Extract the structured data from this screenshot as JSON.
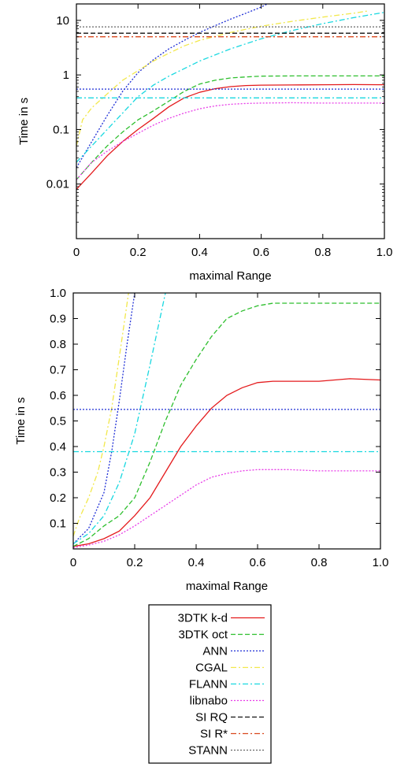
{
  "legend": {
    "entries": [
      {
        "label": "3DTK k-d",
        "color": "#e41a1c",
        "dash": "solid"
      },
      {
        "label": "3DTK oct",
        "color": "#2ebf2e",
        "dash": "dashed"
      },
      {
        "label": "ANN",
        "color": "#1f2fd6",
        "dash": "dotted"
      },
      {
        "label": "CGAL",
        "color": "#f2e84b",
        "dash": "dashdot"
      },
      {
        "label": "FLANN",
        "color": "#18d8e0",
        "dash": "dashdot"
      },
      {
        "label": "libnabo",
        "color": "#e83ce8",
        "dash": "dotted"
      },
      {
        "label": "SI RQ",
        "color": "#111111",
        "dash": "dashed"
      },
      {
        "label": "SI R*",
        "color": "#d9471e",
        "dash": "dashdot"
      },
      {
        "label": "STANN",
        "color": "#666666",
        "dash": "dotted"
      }
    ]
  },
  "chart_data": [
    {
      "type": "line",
      "xlabel": "maximal Range",
      "ylabel": "Time in s",
      "xlim": [
        0,
        1.0
      ],
      "ylim": [
        0.001,
        20
      ],
      "yscale": "log",
      "xticks": [
        0,
        0.2,
        0.4,
        0.6,
        0.8,
        1.0
      ],
      "xtick_labels": [
        "0",
        "0.2",
        "0.4",
        "0.6",
        "0.8",
        "1.0"
      ],
      "yticks": [
        0.01,
        0.1,
        1,
        10
      ],
      "ytick_labels": [
        "0.01",
        "0.1",
        "1",
        "10"
      ],
      "grid": false,
      "series": [
        {
          "name": "3DTK k-d",
          "x": [
            0,
            0.05,
            0.1,
            0.15,
            0.2,
            0.25,
            0.3,
            0.35,
            0.4,
            0.45,
            0.5,
            0.55,
            0.6,
            0.7,
            0.8,
            0.9,
            1.0
          ],
          "y": [
            0.008,
            0.016,
            0.033,
            0.06,
            0.1,
            0.16,
            0.26,
            0.38,
            0.48,
            0.56,
            0.61,
            0.64,
            0.65,
            0.655,
            0.66,
            0.665,
            0.66
          ]
        },
        {
          "name": "3DTK oct",
          "x": [
            0,
            0.05,
            0.1,
            0.15,
            0.2,
            0.25,
            0.3,
            0.35,
            0.4,
            0.45,
            0.5,
            0.55,
            0.6,
            0.7,
            0.8,
            0.9,
            1.0
          ],
          "y": [
            0.012,
            0.025,
            0.05,
            0.09,
            0.15,
            0.22,
            0.33,
            0.5,
            0.68,
            0.8,
            0.88,
            0.92,
            0.95,
            0.96,
            0.96,
            0.96,
            0.96
          ]
        },
        {
          "name": "ANN",
          "x": [
            0,
            0.05,
            0.1,
            0.15,
            0.2,
            0.25,
            0.3,
            0.35,
            0.4,
            0.45,
            0.5,
            0.55,
            0.6,
            0.62
          ],
          "y": [
            0.02,
            0.06,
            0.18,
            0.5,
            1.1,
            1.9,
            3,
            4.3,
            6,
            8,
            10.5,
            13.5,
            17.5,
            20
          ]
        },
        {
          "name": "CGAL",
          "x": [
            0,
            0.02,
            0.05,
            0.1,
            0.15,
            0.2,
            0.25,
            0.3,
            0.35,
            0.4,
            0.5,
            0.6,
            0.7,
            0.8,
            0.9,
            0.95
          ],
          "y": [
            0.05,
            0.15,
            0.25,
            0.45,
            0.8,
            1.2,
            1.8,
            2.5,
            3.4,
            4.3,
            6,
            7.8,
            9.6,
            11.5,
            13.5,
            15
          ]
        },
        {
          "name": "FLANN",
          "x": [
            0,
            0.05,
            0.1,
            0.15,
            0.2,
            0.25,
            0.3,
            0.35,
            0.4,
            0.5,
            0.6,
            0.7,
            0.8,
            0.9,
            1.0
          ],
          "y": [
            0.025,
            0.05,
            0.1,
            0.2,
            0.4,
            0.65,
            0.95,
            1.3,
            1.8,
            3,
            4.6,
            6.5,
            8.7,
            11.2,
            14
          ]
        },
        {
          "name": "libnabo",
          "x": [
            0,
            0.05,
            0.1,
            0.15,
            0.2,
            0.25,
            0.3,
            0.35,
            0.4,
            0.45,
            0.5,
            0.55,
            0.6,
            0.7,
            0.8,
            0.9,
            1.0
          ],
          "y": [
            0.012,
            0.025,
            0.04,
            0.06,
            0.085,
            0.12,
            0.16,
            0.2,
            0.24,
            0.27,
            0.29,
            0.3,
            0.305,
            0.31,
            0.305,
            0.305,
            0.305
          ]
        },
        {
          "name": "ANN (constant)",
          "x": [
            0,
            1.0
          ],
          "y": [
            0.55,
            0.55
          ]
        },
        {
          "name": "FLANN (constant)",
          "x": [
            0,
            1.0
          ],
          "y": [
            0.38,
            0.38
          ]
        },
        {
          "name": "SI RQ",
          "x": [
            0,
            1.0
          ],
          "y": [
            5.8,
            5.8
          ]
        },
        {
          "name": "SI R*",
          "x": [
            0,
            1.0
          ],
          "y": [
            5.0,
            5.0
          ]
        },
        {
          "name": "STANN",
          "x": [
            0,
            1.0
          ],
          "y": [
            7.6,
            7.6
          ]
        }
      ]
    },
    {
      "type": "line",
      "xlabel": "maximal Range",
      "ylabel": "Time in s",
      "xlim": [
        0,
        1.0
      ],
      "ylim": [
        0,
        1.0
      ],
      "yscale": "linear",
      "xticks": [
        0,
        0.2,
        0.4,
        0.6,
        0.8,
        1.0
      ],
      "xtick_labels": [
        "0",
        "0.2",
        "0.4",
        "0.6",
        "0.8",
        "1.0"
      ],
      "yticks": [
        0.1,
        0.2,
        0.3,
        0.4,
        0.5,
        0.6,
        0.7,
        0.8,
        0.9,
        1.0
      ],
      "ytick_labels": [
        "0.1",
        "0.2",
        "0.3",
        "0.4",
        "0.5",
        "0.6",
        "0.7",
        "0.8",
        "0.9",
        "1.0"
      ],
      "grid": false,
      "series": [
        {
          "name": "3DTK k-d",
          "x": [
            0,
            0.05,
            0.1,
            0.15,
            0.2,
            0.25,
            0.3,
            0.35,
            0.4,
            0.45,
            0.5,
            0.55,
            0.6,
            0.65,
            0.7,
            0.8,
            0.9,
            1.0
          ],
          "y": [
            0.01,
            0.02,
            0.04,
            0.07,
            0.13,
            0.2,
            0.3,
            0.4,
            0.48,
            0.55,
            0.6,
            0.63,
            0.65,
            0.655,
            0.655,
            0.655,
            0.665,
            0.66
          ]
        },
        {
          "name": "3DTK oct",
          "x": [
            0,
            0.05,
            0.1,
            0.15,
            0.2,
            0.25,
            0.3,
            0.35,
            0.4,
            0.45,
            0.5,
            0.55,
            0.6,
            0.65,
            0.7,
            0.8,
            0.9,
            1.0
          ],
          "y": [
            0.01,
            0.04,
            0.09,
            0.13,
            0.2,
            0.34,
            0.5,
            0.64,
            0.74,
            0.83,
            0.9,
            0.93,
            0.95,
            0.96,
            0.96,
            0.96,
            0.96,
            0.96
          ]
        },
        {
          "name": "ANN",
          "x": [
            0,
            0.05,
            0.1,
            0.125,
            0.15,
            0.175,
            0.2
          ],
          "y": [
            0.02,
            0.08,
            0.22,
            0.38,
            0.58,
            0.8,
            1.0
          ]
        },
        {
          "name": "CGAL",
          "x": [
            0,
            0.02,
            0.05,
            0.08,
            0.1,
            0.125,
            0.15,
            0.18
          ],
          "y": [
            0.05,
            0.12,
            0.2,
            0.3,
            0.4,
            0.55,
            0.75,
            1.0
          ]
        },
        {
          "name": "FLANN",
          "x": [
            0,
            0.05,
            0.1,
            0.15,
            0.2,
            0.25,
            0.3
          ],
          "y": [
            0.02,
            0.06,
            0.13,
            0.26,
            0.45,
            0.72,
            1.0
          ]
        },
        {
          "name": "libnabo",
          "x": [
            0,
            0.05,
            0.1,
            0.15,
            0.2,
            0.25,
            0.3,
            0.35,
            0.4,
            0.45,
            0.5,
            0.55,
            0.6,
            0.65,
            0.7,
            0.8,
            0.9,
            1.0
          ],
          "y": [
            0.005,
            0.015,
            0.03,
            0.055,
            0.09,
            0.13,
            0.17,
            0.21,
            0.25,
            0.28,
            0.295,
            0.305,
            0.31,
            0.31,
            0.31,
            0.305,
            0.305,
            0.305
          ]
        },
        {
          "name": "ANN (constant)",
          "x": [
            0,
            1.0
          ],
          "y": [
            0.545,
            0.545
          ]
        },
        {
          "name": "FLANN (constant)",
          "x": [
            0,
            1.0
          ],
          "y": [
            0.38,
            0.38
          ]
        }
      ]
    }
  ]
}
